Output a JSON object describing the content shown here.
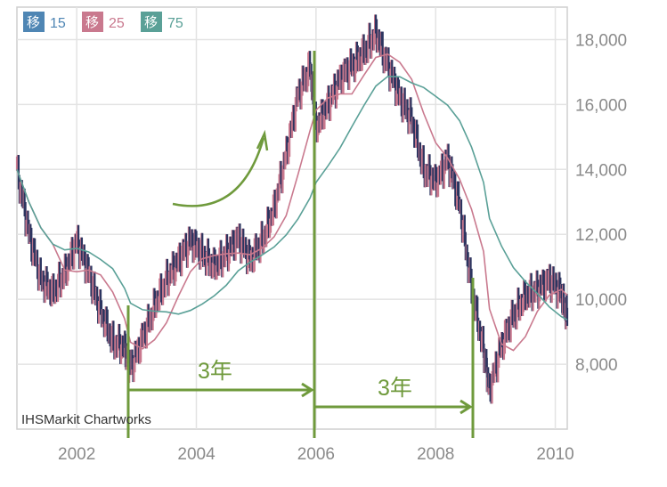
{
  "chart_data": {
    "type": "line",
    "title": "",
    "xlabel": "",
    "ylabel": "",
    "xlim": [
      2001.0,
      2010.2
    ],
    "ylim": [
      6000,
      19000
    ],
    "y_ticks": [
      8000,
      10000,
      12000,
      14000,
      16000,
      18000
    ],
    "y_tick_labels": [
      "8,000",
      "10,000",
      "12,000",
      "14,000",
      "16,000",
      "18,000"
    ],
    "x_ticks": [
      2002,
      2004,
      2006,
      2008,
      2010
    ],
    "x_tick_labels": [
      "2002",
      "2004",
      "2006",
      "2008",
      "2010"
    ],
    "grid": true,
    "legend": [
      {
        "badge": "移",
        "label": "15",
        "color": "#4f86b4"
      },
      {
        "badge": "移",
        "label": "25",
        "color": "#c9798e"
      },
      {
        "badge": "移",
        "label": "75",
        "color": "#5aa097"
      }
    ],
    "series": [
      {
        "name": "",
        "style": "candles",
        "color": "#2c3560",
        "x": [
          2001.0,
          2001.2,
          2001.4,
          2001.6,
          2001.8,
          2002.0,
          2002.2,
          2002.4,
          2002.6,
          2002.8,
          2002.9,
          2003.1,
          2003.3,
          2003.5,
          2003.7,
          2003.9,
          2004.1,
          2004.3,
          2004.5,
          2004.7,
          2004.9,
          2005.1,
          2005.3,
          2005.5,
          2005.7,
          2005.9,
          2006.0,
          2006.2,
          2006.4,
          2006.6,
          2006.8,
          2007.0,
          2007.2,
          2007.4,
          2007.6,
          2007.8,
          2008.0,
          2008.2,
          2008.4,
          2008.6,
          2008.8,
          2008.9,
          2009.1,
          2009.3,
          2009.5,
          2009.7,
          2009.9,
          2010.1,
          2010.2
        ],
        "values": [
          14000,
          12000,
          10600,
          10200,
          10800,
          11800,
          10800,
          9600,
          8700,
          8500,
          7900,
          8800,
          9800,
          10600,
          11200,
          11800,
          11400,
          11000,
          11400,
          11900,
          11200,
          11800,
          12800,
          14500,
          16300,
          17200,
          15300,
          16000,
          16800,
          17200,
          17600,
          18200,
          17200,
          16200,
          15500,
          14000,
          13600,
          14300,
          12900,
          10300,
          8400,
          7200,
          8600,
          9500,
          10100,
          10300,
          10600,
          10200,
          9400
        ]
      },
      {
        "name": "",
        "style": "line",
        "color": "#c9798e",
        "smooth": 3,
        "ref": "candles"
      },
      {
        "name": "",
        "style": "line",
        "color": "#5aa097",
        "smooth": 8,
        "ref": "candles"
      }
    ],
    "annotations": {
      "span_label_1": "3年",
      "span_label_2": "3年",
      "credit": "IHSMarkit Chartworks",
      "markers_x": [
        2002.95,
        2006.0,
        2008.95
      ]
    }
  }
}
